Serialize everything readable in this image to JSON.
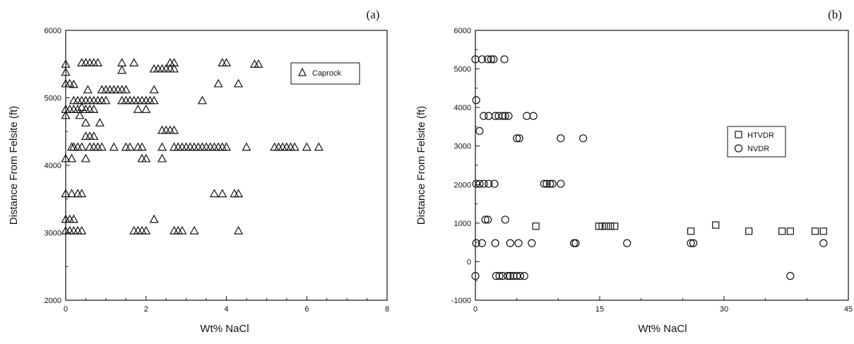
{
  "chart_data": [
    {
      "type": "scatter",
      "panel_label": "(a)",
      "xlabel": "Wt% NaCl",
      "ylabel": "Distance From Felsite (ft)",
      "xlim": [
        0,
        8
      ],
      "ylim": [
        2000,
        6000
      ],
      "xticks": [
        0,
        2,
        4,
        6,
        8
      ],
      "yticks": [
        2000,
        3000,
        4000,
        5000,
        6000
      ],
      "legend_position": "top-right",
      "series": [
        {
          "name": "Caprock",
          "marker": "triangle",
          "points": [
            [
              0.0,
              5500
            ],
            [
              0.0,
              5380
            ],
            [
              0.0,
              5210
            ],
            [
              0.0,
              4830
            ],
            [
              0.0,
              4740
            ],
            [
              0.0,
              4100
            ],
            [
              0.0,
              3580
            ],
            [
              0.0,
              3200
            ],
            [
              0.0,
              3030
            ],
            [
              0.1,
              5210
            ],
            [
              0.1,
              4830
            ],
            [
              0.1,
              3200
            ],
            [
              0.1,
              3030
            ],
            [
              0.15,
              4270
            ],
            [
              0.15,
              4100
            ],
            [
              0.15,
              3580
            ],
            [
              0.2,
              5200
            ],
            [
              0.2,
              4960
            ],
            [
              0.2,
              4830
            ],
            [
              0.2,
              4270
            ],
            [
              0.2,
              3200
            ],
            [
              0.2,
              3030
            ],
            [
              0.3,
              4960
            ],
            [
              0.3,
              4830
            ],
            [
              0.3,
              4270
            ],
            [
              0.3,
              3580
            ],
            [
              0.3,
              3030
            ],
            [
              0.35,
              4740
            ],
            [
              0.4,
              5520
            ],
            [
              0.4,
              4960
            ],
            [
              0.4,
              4860
            ],
            [
              0.4,
              4270
            ],
            [
              0.4,
              3580
            ],
            [
              0.4,
              3030
            ],
            [
              0.5,
              5520
            ],
            [
              0.5,
              4960
            ],
            [
              0.5,
              4830
            ],
            [
              0.5,
              4630
            ],
            [
              0.5,
              4430
            ],
            [
              0.5,
              4100
            ],
            [
              0.55,
              5120
            ],
            [
              0.6,
              5520
            ],
            [
              0.6,
              4960
            ],
            [
              0.6,
              4830
            ],
            [
              0.6,
              4270
            ],
            [
              0.6,
              4430
            ],
            [
              0.7,
              5520
            ],
            [
              0.7,
              4960
            ],
            [
              0.7,
              4830
            ],
            [
              0.7,
              4430
            ],
            [
              0.7,
              4270
            ],
            [
              0.8,
              5520
            ],
            [
              0.8,
              4960
            ],
            [
              0.8,
              4270
            ],
            [
              0.85,
              4630
            ],
            [
              0.9,
              5120
            ],
            [
              0.9,
              4960
            ],
            [
              0.9,
              4270
            ],
            [
              1.0,
              5120
            ],
            [
              1.0,
              4960
            ],
            [
              1.1,
              5120
            ],
            [
              1.2,
              5120
            ],
            [
              1.2,
              4270
            ],
            [
              1.3,
              5120
            ],
            [
              1.4,
              5520
            ],
            [
              1.4,
              5410
            ],
            [
              1.4,
              5120
            ],
            [
              1.4,
              4960
            ],
            [
              1.5,
              5120
            ],
            [
              1.5,
              4960
            ],
            [
              1.5,
              4270
            ],
            [
              1.6,
              4960
            ],
            [
              1.6,
              4270
            ],
            [
              1.7,
              5520
            ],
            [
              1.7,
              4960
            ],
            [
              1.7,
              3030
            ],
            [
              1.8,
              4960
            ],
            [
              1.8,
              4830
            ],
            [
              1.8,
              4270
            ],
            [
              1.8,
              3030
            ],
            [
              1.9,
              4960
            ],
            [
              1.9,
              4270
            ],
            [
              1.9,
              4100
            ],
            [
              1.9,
              3030
            ],
            [
              2.0,
              4960
            ],
            [
              2.0,
              4830
            ],
            [
              2.0,
              4100
            ],
            [
              2.0,
              3030
            ],
            [
              2.1,
              4960
            ],
            [
              2.2,
              5120
            ],
            [
              2.2,
              5430
            ],
            [
              2.2,
              4960
            ],
            [
              2.2,
              3200
            ],
            [
              2.3,
              5430
            ],
            [
              2.4,
              5430
            ],
            [
              2.4,
              4520
            ],
            [
              2.4,
              4270
            ],
            [
              2.4,
              4100
            ],
            [
              2.5,
              5430
            ],
            [
              2.5,
              4520
            ],
            [
              2.6,
              5520
            ],
            [
              2.6,
              5430
            ],
            [
              2.6,
              4520
            ],
            [
              2.7,
              5520
            ],
            [
              2.7,
              5430
            ],
            [
              2.7,
              4520
            ],
            [
              2.7,
              4270
            ],
            [
              2.7,
              3030
            ],
            [
              2.8,
              4270
            ],
            [
              2.8,
              3030
            ],
            [
              2.9,
              4270
            ],
            [
              2.9,
              3030
            ],
            [
              3.0,
              4270
            ],
            [
              3.1,
              4270
            ],
            [
              3.2,
              4270
            ],
            [
              3.2,
              3030
            ],
            [
              3.3,
              4270
            ],
            [
              3.4,
              4960
            ],
            [
              3.4,
              4270
            ],
            [
              3.5,
              4270
            ],
            [
              3.6,
              4270
            ],
            [
              3.7,
              4270
            ],
            [
              3.7,
              3580
            ],
            [
              3.8,
              5210
            ],
            [
              3.8,
              4270
            ],
            [
              3.9,
              5520
            ],
            [
              3.9,
              4270
            ],
            [
              3.9,
              3580
            ],
            [
              4.0,
              5520
            ],
            [
              4.0,
              4270
            ],
            [
              4.2,
              3580
            ],
            [
              4.3,
              5210
            ],
            [
              4.3,
              3580
            ],
            [
              4.3,
              3030
            ],
            [
              4.5,
              4270
            ],
            [
              4.7,
              5500
            ],
            [
              4.8,
              5500
            ],
            [
              5.2,
              4270
            ],
            [
              5.3,
              4270
            ],
            [
              5.4,
              4270
            ],
            [
              5.5,
              4270
            ],
            [
              5.6,
              4270
            ],
            [
              5.7,
              4270
            ],
            [
              6.0,
              4270
            ],
            [
              6.3,
              4270
            ]
          ]
        }
      ]
    },
    {
      "type": "scatter",
      "panel_label": "(b)",
      "xlabel": "Wt% NaCl",
      "ylabel": "Distance From Felsite (ft)",
      "xlim": [
        0,
        45
      ],
      "ylim": [
        -1000,
        6000
      ],
      "xticks": [
        0,
        15,
        30,
        45
      ],
      "yticks": [
        -1000,
        0,
        1000,
        2000,
        3000,
        4000,
        5000,
        6000
      ],
      "legend_position": "top-right",
      "series": [
        {
          "name": "HTVDR",
          "marker": "square",
          "points": [
            [
              7.3,
              920
            ],
            [
              14.9,
              920
            ],
            [
              15.3,
              920
            ],
            [
              15.8,
              920
            ],
            [
              16.3,
              920
            ],
            [
              16.8,
              920
            ],
            [
              26.0,
              790
            ],
            [
              29.0,
              950
            ],
            [
              33.0,
              790
            ],
            [
              37.0,
              790
            ],
            [
              38.0,
              790
            ],
            [
              41.0,
              790
            ],
            [
              42.0,
              790
            ]
          ]
        },
        {
          "name": "NVDR",
          "marker": "circle",
          "points": [
            [
              0.0,
              5250
            ],
            [
              0.8,
              5250
            ],
            [
              1.5,
              5250
            ],
            [
              1.9,
              5250
            ],
            [
              2.2,
              5250
            ],
            [
              3.5,
              5250
            ],
            [
              0.1,
              4190
            ],
            [
              1.0,
              3780
            ],
            [
              1.6,
              3780
            ],
            [
              2.4,
              3780
            ],
            [
              2.8,
              3780
            ],
            [
              3.3,
              3780
            ],
            [
              3.6,
              3780
            ],
            [
              4.0,
              3780
            ],
            [
              6.2,
              3780
            ],
            [
              7.0,
              3780
            ],
            [
              0.5,
              3390
            ],
            [
              5.0,
              3200
            ],
            [
              5.3,
              3200
            ],
            [
              10.3,
              3200
            ],
            [
              13.0,
              3200
            ],
            [
              0.1,
              2020
            ],
            [
              0.5,
              2020
            ],
            [
              1.0,
              2020
            ],
            [
              1.6,
              2020
            ],
            [
              2.3,
              2020
            ],
            [
              8.3,
              2020
            ],
            [
              8.6,
              2020
            ],
            [
              9.0,
              2020
            ],
            [
              9.3,
              2020
            ],
            [
              10.3,
              2020
            ],
            [
              1.2,
              1090
            ],
            [
              1.5,
              1090
            ],
            [
              3.6,
              1090
            ],
            [
              0.1,
              480
            ],
            [
              0.8,
              480
            ],
            [
              2.4,
              480
            ],
            [
              4.2,
              480
            ],
            [
              5.2,
              480
            ],
            [
              6.8,
              480
            ],
            [
              11.9,
              480
            ],
            [
              12.1,
              480
            ],
            [
              18.3,
              480
            ],
            [
              26.0,
              480
            ],
            [
              26.3,
              480
            ],
            [
              42.0,
              480
            ],
            [
              0.0,
              -370
            ],
            [
              2.5,
              -370
            ],
            [
              2.9,
              -370
            ],
            [
              3.3,
              -370
            ],
            [
              3.9,
              -370
            ],
            [
              4.2,
              -370
            ],
            [
              4.6,
              -370
            ],
            [
              5.0,
              -370
            ],
            [
              5.4,
              -370
            ],
            [
              5.9,
              -370
            ],
            [
              38.0,
              -370
            ]
          ]
        }
      ]
    }
  ]
}
